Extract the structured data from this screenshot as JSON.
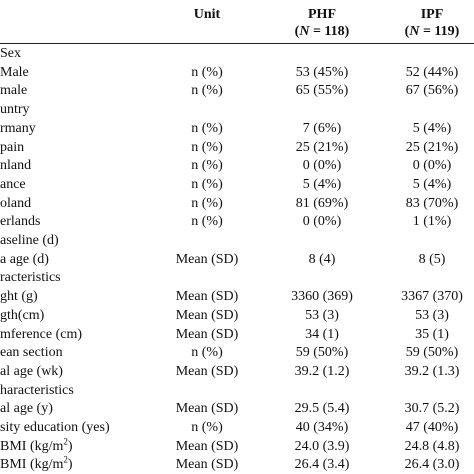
{
  "header": {
    "unit": "Unit",
    "group1": {
      "name": "PHF",
      "n": "(N = 118)"
    },
    "group2": {
      "name": "IPF",
      "n": "(N = 119)"
    }
  },
  "rows": [
    {
      "label": "Sex",
      "unit": "",
      "v1": "",
      "v2": ""
    },
    {
      "label": "Male",
      "unit": "n (%)",
      "v1": "53 (45%)",
      "v2": "52 (44%)"
    },
    {
      "label": "male",
      "unit": "n (%)",
      "v1": "65 (55%)",
      "v2": "67 (56%)"
    },
    {
      "label": "untry",
      "unit": "",
      "v1": "",
      "v2": ""
    },
    {
      "label": "rmany",
      "unit": "n (%)",
      "v1": "7 (6%)",
      "v2": "5 (4%)"
    },
    {
      "label": "pain",
      "unit": "n (%)",
      "v1": "25 (21%)",
      "v2": "25 (21%)"
    },
    {
      "label": "nland",
      "unit": "n (%)",
      "v1": "0 (0%)",
      "v2": "0 (0%)"
    },
    {
      "label": "ance",
      "unit": "n (%)",
      "v1": "5 (4%)",
      "v2": "5 (4%)"
    },
    {
      "label": "oland",
      "unit": "n (%)",
      "v1": "81 (69%)",
      "v2": "83 (70%)"
    },
    {
      "label": "erlands",
      "unit": "n (%)",
      "v1": "0 (0%)",
      "v2": "1 (1%)"
    },
    {
      "label": "aseline (d)",
      "unit": "",
      "v1": "",
      "v2": ""
    },
    {
      "label": "a age (d)",
      "unit": "Mean (SD)",
      "v1": "8 (4)",
      "v2": "8 (5)"
    },
    {
      "label": "racteristics",
      "unit": "",
      "v1": "",
      "v2": ""
    },
    {
      "label": "ght (g)",
      "unit": "Mean (SD)",
      "v1": "3360 (369)",
      "v2": "3367 (370)"
    },
    {
      "label": "gth(cm)",
      "unit": "Mean (SD)",
      "v1": "53 (3)",
      "v2": "53 (3)"
    },
    {
      "label": "mference (cm)",
      "unit": "Mean (SD)",
      "v1": "34 (1)",
      "v2": "35 (1)"
    },
    {
      "label": "ean section",
      "unit": "n (%)",
      "v1": "59 (50%)",
      "v2": "59 (50%)"
    },
    {
      "label": "al age (wk)",
      "unit": "Mean (SD)",
      "v1": "39.2 (1.2)",
      "v2": "39.2 (1.3)"
    },
    {
      "label": "haracteristics",
      "unit": "",
      "v1": "",
      "v2": ""
    },
    {
      "label": "al age (y)",
      "unit": "Mean (SD)",
      "v1": "29.5 (5.4)",
      "v2": "30.7 (5.2)"
    },
    {
      "label": "sity education (yes)",
      "unit": "n (%)",
      "v1": "40 (34%)",
      "v2": "47 (40%)"
    },
    {
      "label": "BMI (kg/m",
      "sup": "2",
      "unit": "Mean (SD)",
      "v1": "24.0 (3.9)",
      "v2": "24.8 (4.8)"
    },
    {
      "label": "BMI (kg/m",
      "sup": "2",
      "unit": "Mean (SD)",
      "v1": "26.4 (3.4)",
      "v2": "26.4 (3.0)"
    }
  ]
}
